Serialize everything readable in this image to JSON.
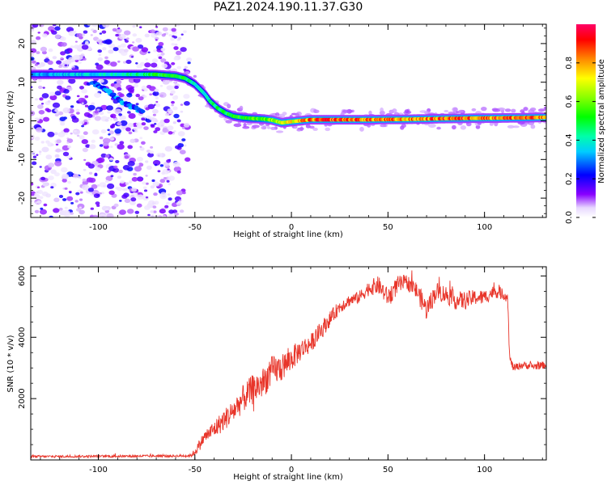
{
  "title": "PAZ1.2024.190.11.37.G30",
  "chart_data": [
    {
      "type": "heatmap",
      "title": "PAZ1.2024.190.11.37.G30",
      "xlabel": "Height of straight line (km)",
      "ylabel": "Frequency (Hz)",
      "xlim": [
        -135,
        132
      ],
      "ylim": [
        -25,
        25
      ],
      "xticks": [
        -100,
        -50,
        0,
        50,
        100
      ],
      "xtick_labels": [
        "-100",
        "-50",
        "0",
        "50",
        "100"
      ],
      "yticks": [
        -20,
        -10,
        0,
        10,
        20
      ],
      "ytick_labels": [
        "-20",
        "-10",
        "0",
        "10",
        "20"
      ],
      "ridge": {
        "description": "dominant spectral line frequency vs height",
        "x": [
          -135,
          -110,
          -90,
          -70,
          -60,
          -55,
          -50,
          -45,
          -42,
          -38,
          -34,
          -30,
          -25,
          -20,
          -15,
          -10,
          -5,
          0,
          10,
          20,
          40,
          60,
          80,
          100,
          120,
          132
        ],
        "y": [
          12,
          12,
          12,
          12,
          11.6,
          11,
          9.5,
          7,
          5,
          3.2,
          2,
          1.2,
          0.8,
          0.6,
          0.5,
          0.2,
          -0.5,
          -0.2,
          0.3,
          0.3,
          0.3,
          0.4,
          0.6,
          0.7,
          0.8,
          0.9
        ],
        "amplitude": [
          0.35,
          0.4,
          0.45,
          0.55,
          0.6,
          0.55,
          0.45,
          0.45,
          0.5,
          0.55,
          0.55,
          0.6,
          0.6,
          0.62,
          0.65,
          0.7,
          0.75,
          0.8,
          0.95,
          1.0,
          0.95,
          0.9,
          0.98,
          0.97,
          0.96,
          0.9
        ]
      },
      "secondary_branch": {
        "x": [
          -103,
          -95,
          -88,
          -82,
          -77
        ],
        "y": [
          10,
          7.5,
          5,
          3.5,
          2.5
        ]
      },
      "noise_region_x": [
        -135,
        -53
      ],
      "colorbar": {
        "label": "Normalized spectral amplitude",
        "range": [
          0,
          1
        ],
        "ticks": [
          0.0,
          0.2,
          0.4,
          0.6,
          0.8
        ],
        "tick_labels": [
          "0.0",
          "0.2",
          "0.4",
          "0.6",
          "0.8"
        ]
      }
    },
    {
      "type": "line",
      "xlabel": "Height of straight line (km)",
      "ylabel": "SNR (10 * v/v)",
      "xlim": [
        -135,
        132
      ],
      "ylim": [
        0,
        6300
      ],
      "xticks": [
        -100,
        -50,
        0,
        50,
        100
      ],
      "xtick_labels": [
        "-100",
        "-50",
        "0",
        "50",
        "100"
      ],
      "yticks": [
        2000,
        4000,
        6000
      ],
      "ytick_labels": [
        "2000",
        "4000",
        "6000"
      ],
      "color": "#e8352a",
      "series": [
        {
          "name": "SNR",
          "x": [
            -135,
            -100,
            -60,
            -52,
            -50,
            -47,
            -45,
            -40,
            -35,
            -30,
            -25,
            -20,
            -15,
            -10,
            -5,
            0,
            5,
            10,
            15,
            20,
            25,
            30,
            35,
            40,
            45,
            50,
            55,
            60,
            65,
            70,
            75,
            80,
            85,
            90,
            95,
            100,
            105,
            110,
            112,
            113,
            115,
            120,
            125,
            132
          ],
          "y": [
            110,
            120,
            130,
            140,
            260,
            550,
            750,
            1000,
            1300,
            1600,
            2000,
            2300,
            2500,
            2900,
            3000,
            3300,
            3600,
            3800,
            4200,
            4600,
            5000,
            5200,
            5300,
            5600,
            5700,
            5300,
            5700,
            5800,
            5500,
            4900,
            5500,
            5400,
            5200,
            5200,
            5300,
            5300,
            5500,
            5400,
            5300,
            3300,
            3000,
            3100,
            3050,
            3100
          ],
          "noise_amplitude": [
            40,
            40,
            40,
            50,
            120,
            200,
            200,
            300,
            350,
            400,
            450,
            500,
            500,
            500,
            450,
            400,
            350,
            300,
            300,
            250,
            220,
            200,
            200,
            250,
            300,
            300,
            300,
            250,
            300,
            350,
            300,
            300,
            300,
            300,
            250,
            250,
            200,
            200,
            150,
            150,
            120,
            120,
            120,
            120
          ]
        }
      ]
    }
  ]
}
